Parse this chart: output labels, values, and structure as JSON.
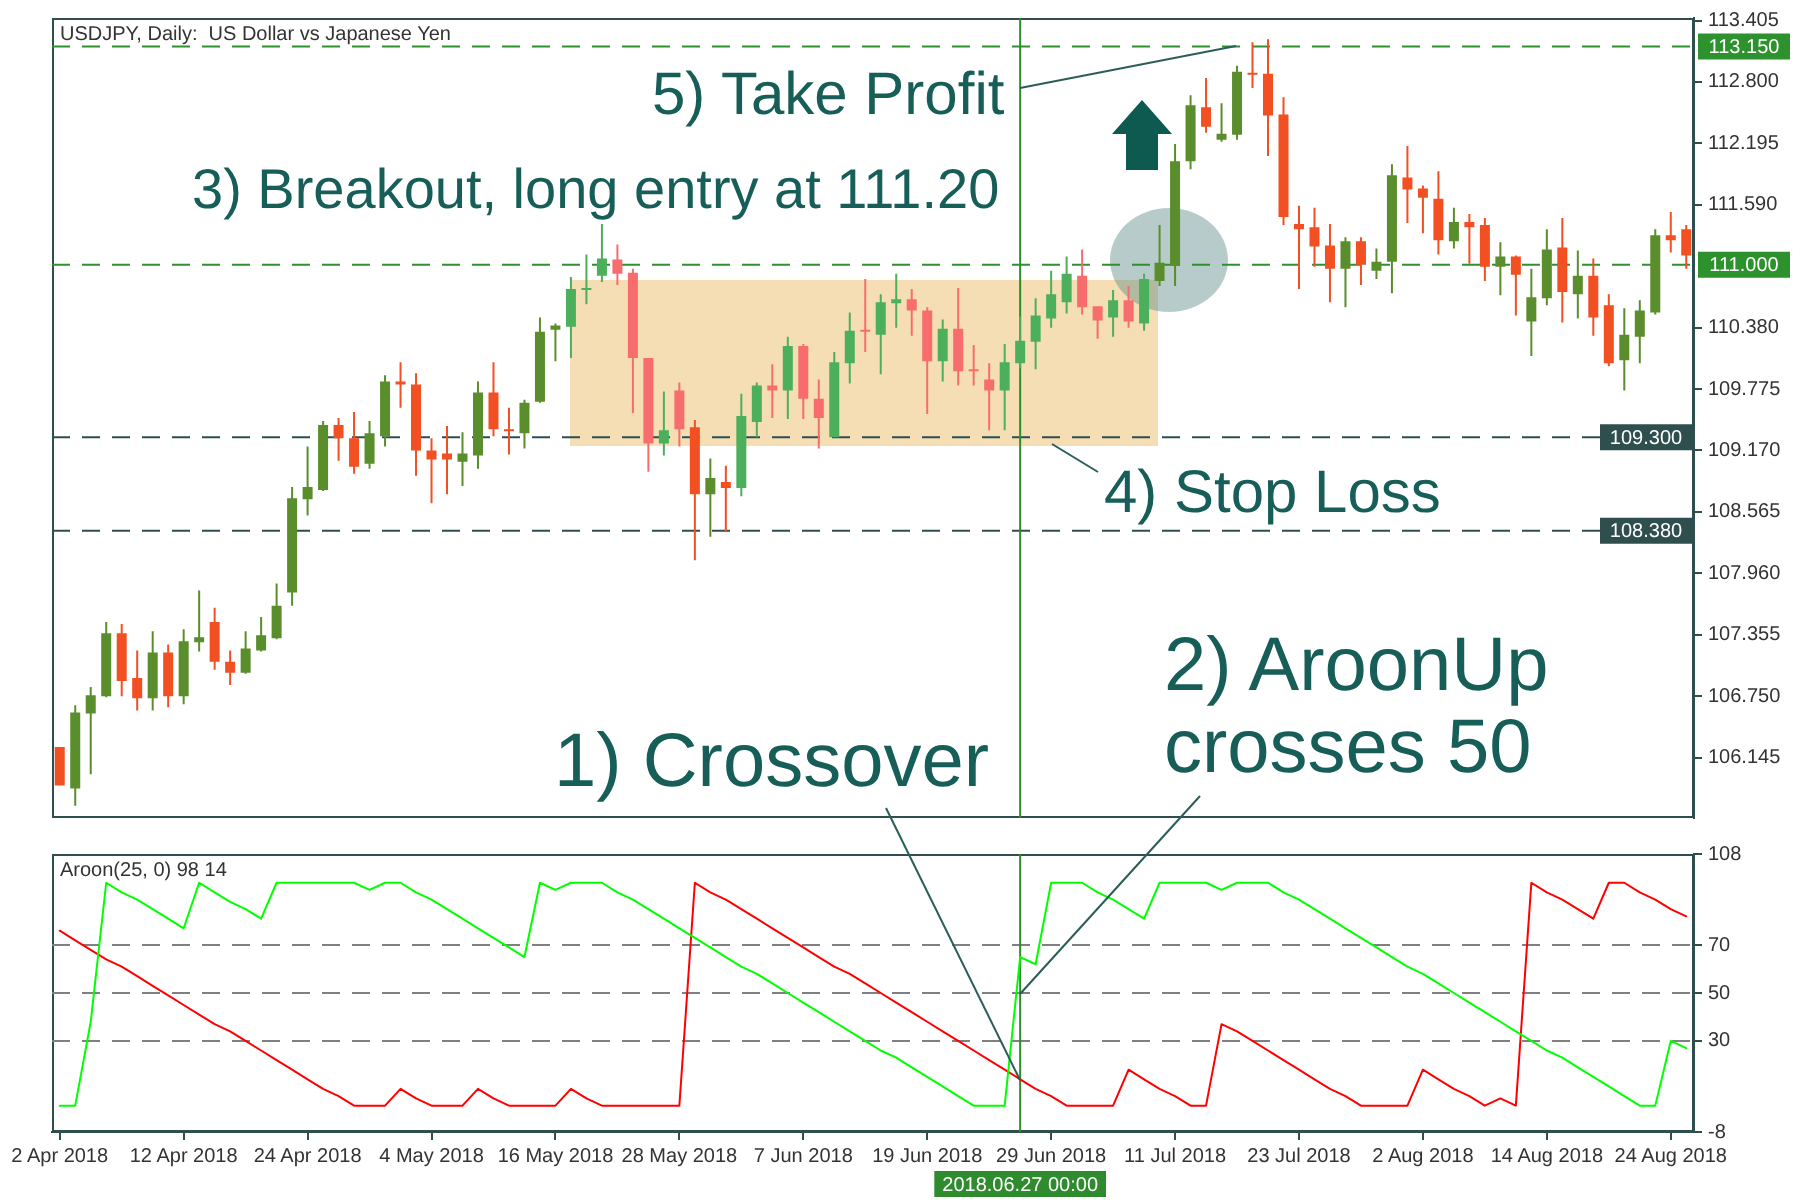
{
  "chart_data": [
    {
      "type": "candlestick",
      "title": "USDJPY, Daily:  US Dollar vs Japanese Yen",
      "tick_labels": "y",
      "annotations": [
        "3) Breakout, long entry at 111.20",
        "4) Stop Loss",
        {
          "text": "5) Take Profit",
          "y": 113.15
        }
      ],
      "categories": [
        "2 Apr 2018",
        null,
        null,
        null,
        null,
        null,
        null,
        null,
        "12 Apr 2018",
        null,
        null,
        null,
        null,
        null,
        null,
        null,
        "24 Apr 2018",
        null,
        null,
        null,
        null,
        null,
        null,
        null,
        "4 May 2018",
        null,
        null,
        null,
        null,
        null,
        null,
        null,
        "16 May 2018",
        null,
        null,
        null,
        null,
        null,
        null,
        null,
        "28 May 2018",
        null,
        null,
        null,
        null,
        null,
        null,
        null,
        "7 Jun 2018",
        null,
        null,
        null,
        null,
        null,
        null,
        null,
        "19 Jun 2018",
        null,
        null,
        null,
        null,
        null,
        "2018.06.27 00:00",
        null,
        "29 Jun 2018",
        null,
        null,
        null,
        null,
        null,
        null,
        null,
        "11 Jul 2018",
        null,
        null,
        null,
        null,
        null,
        null,
        null,
        "23 Jul 2018",
        null,
        null,
        null,
        null,
        null,
        null,
        null,
        "2 Aug 2018",
        null,
        null,
        null,
        null,
        null,
        null,
        null,
        "14 Aug 2018",
        null,
        null,
        null,
        null,
        null,
        null,
        null,
        "24 Aug 2018",
        null
      ],
      "ohlc": [
        [
          106.25,
          106.25,
          105.87,
          105.87
        ],
        [
          105.84,
          106.66,
          105.67,
          106.59
        ],
        [
          106.58,
          106.84,
          105.98,
          106.76
        ],
        [
          106.75,
          107.48,
          106.74,
          107.37
        ],
        [
          107.37,
          107.46,
          106.75,
          106.9
        ],
        [
          106.93,
          107.2,
          106.61,
          106.73
        ],
        [
          106.73,
          107.39,
          106.61,
          107.18
        ],
        [
          107.18,
          107.26,
          106.64,
          106.75
        ],
        [
          106.75,
          107.41,
          106.67,
          107.29
        ],
        [
          107.28,
          107.79,
          107.19,
          107.33
        ],
        [
          107.48,
          107.62,
          107.01,
          107.09
        ],
        [
          107.09,
          107.2,
          106.86,
          106.98
        ],
        [
          106.98,
          107.39,
          106.97,
          107.22
        ],
        [
          107.2,
          107.53,
          107.19,
          107.35
        ],
        [
          107.32,
          107.86,
          107.31,
          107.64
        ],
        [
          107.77,
          108.81,
          107.64,
          108.7
        ],
        [
          108.69,
          109.21,
          108.53,
          108.81
        ],
        [
          108.78,
          109.46,
          108.77,
          109.42
        ],
        [
          109.42,
          109.49,
          109.07,
          109.29
        ],
        [
          109.29,
          109.55,
          108.94,
          109.01
        ],
        [
          109.04,
          109.46,
          108.99,
          109.34
        ],
        [
          109.31,
          109.91,
          109.21,
          109.85
        ],
        [
          109.85,
          110.04,
          109.59,
          109.82
        ],
        [
          109.82,
          109.93,
          108.92,
          109.17
        ],
        [
          109.17,
          109.29,
          108.65,
          109.08
        ],
        [
          109.14,
          109.41,
          108.74,
          109.08
        ],
        [
          109.06,
          109.35,
          108.82,
          109.14
        ],
        [
          109.12,
          109.85,
          108.99,
          109.74
        ],
        [
          109.74,
          110.04,
          109.31,
          109.38
        ],
        [
          109.38,
          109.59,
          109.13,
          109.36
        ],
        [
          109.34,
          109.67,
          109.19,
          109.64
        ],
        [
          109.65,
          110.48,
          109.64,
          110.34
        ],
        [
          110.36,
          110.42,
          110.05,
          110.4
        ],
        [
          110.39,
          110.88,
          110.08,
          110.76
        ],
        [
          110.75,
          111.1,
          110.61,
          110.77
        ],
        [
          110.89,
          111.4,
          110.83,
          111.06
        ],
        [
          111.05,
          111.2,
          110.8,
          110.91
        ],
        [
          110.92,
          110.96,
          109.54,
          110.08
        ],
        [
          110.08,
          110.08,
          108.96,
          109.24
        ],
        [
          109.24,
          109.75,
          109.12,
          109.37
        ],
        [
          109.76,
          109.84,
          109.21,
          109.38
        ],
        [
          109.4,
          109.47,
          108.09,
          108.74
        ],
        [
          108.74,
          109.09,
          108.32,
          108.9
        ],
        [
          108.86,
          109.02,
          108.37,
          108.8
        ],
        [
          108.8,
          109.73,
          108.72,
          109.51
        ],
        [
          109.45,
          109.84,
          109.3,
          109.81
        ],
        [
          109.81,
          110.02,
          109.49,
          109.76
        ],
        [
          109.76,
          110.29,
          109.48,
          110.2
        ],
        [
          110.2,
          110.22,
          109.48,
          109.68
        ],
        [
          109.68,
          109.87,
          109.19,
          109.49
        ],
        [
          109.3,
          110.14,
          109.3,
          110.04
        ],
        [
          110.03,
          110.53,
          109.83,
          110.35
        ],
        [
          110.36,
          110.86,
          110.14,
          110.34
        ],
        [
          110.31,
          110.71,
          109.92,
          110.63
        ],
        [
          110.62,
          110.91,
          110.38,
          110.66
        ],
        [
          110.66,
          110.76,
          110.3,
          110.55
        ],
        [
          110.55,
          110.58,
          109.53,
          110.05
        ],
        [
          110.05,
          110.46,
          109.85,
          110.37
        ],
        [
          110.37,
          110.77,
          109.81,
          109.95
        ],
        [
          109.97,
          110.21,
          109.81,
          109.96
        ],
        [
          109.87,
          110.03,
          109.37,
          109.76
        ],
        [
          109.76,
          110.22,
          109.37,
          110.04
        ],
        [
          110.03,
          110.49,
          109.98,
          110.25
        ],
        [
          110.24,
          110.67,
          109.97,
          110.5
        ],
        [
          110.47,
          110.94,
          110.38,
          110.71
        ],
        [
          110.63,
          111.08,
          110.52,
          110.91
        ],
        [
          110.89,
          111.15,
          110.51,
          110.58
        ],
        [
          110.59,
          110.59,
          110.27,
          110.45
        ],
        [
          110.48,
          110.75,
          110.29,
          110.65
        ],
        [
          110.65,
          110.79,
          110.38,
          110.44
        ],
        [
          110.42,
          110.91,
          110.35,
          110.86
        ],
        [
          110.84,
          111.39,
          110.79,
          111.02
        ],
        [
          110.99,
          112.19,
          110.79,
          112.02
        ],
        [
          112.02,
          112.67,
          111.94,
          112.57
        ],
        [
          112.55,
          112.84,
          112.3,
          112.36
        ],
        [
          112.23,
          112.59,
          112.21,
          112.29
        ],
        [
          112.28,
          112.96,
          112.23,
          112.9
        ],
        [
          112.89,
          113.19,
          112.74,
          112.88
        ],
        [
          112.88,
          113.22,
          112.07,
          112.47
        ],
        [
          112.48,
          112.65,
          111.39,
          111.47
        ],
        [
          111.4,
          111.58,
          110.76,
          111.35
        ],
        [
          111.37,
          111.56,
          110.98,
          111.18
        ],
        [
          111.19,
          111.4,
          110.63,
          110.96
        ],
        [
          110.96,
          111.27,
          110.58,
          111.23
        ],
        [
          111.23,
          111.27,
          110.8,
          111
        ],
        [
          110.94,
          111.16,
          110.86,
          111.03
        ],
        [
          111.03,
          111.99,
          110.72,
          111.88
        ],
        [
          111.86,
          112.17,
          111.41,
          111.74
        ],
        [
          111.75,
          111.78,
          111.31,
          111.66
        ],
        [
          111.65,
          111.92,
          111.1,
          111.24
        ],
        [
          111.23,
          111.56,
          111.16,
          111.42
        ],
        [
          111.42,
          111.5,
          111.01,
          111.37
        ],
        [
          111.39,
          111.46,
          110.84,
          110.98
        ],
        [
          110.98,
          111.22,
          110.7,
          111.08
        ],
        [
          111.08,
          111.09,
          110.5,
          110.9
        ],
        [
          110.44,
          110.96,
          110.1,
          110.68
        ],
        [
          110.67,
          111.35,
          110.6,
          111.15
        ],
        [
          111.17,
          111.46,
          110.43,
          110.73
        ],
        [
          110.71,
          111.14,
          110.47,
          110.89
        ],
        [
          110.89,
          111.06,
          110.3,
          110.48
        ],
        [
          110.6,
          110.71,
          110,
          110.03
        ],
        [
          110.06,
          110.57,
          109.76,
          110.31
        ],
        [
          110.29,
          110.65,
          110.03,
          110.55
        ],
        [
          110.53,
          111.35,
          110.51,
          111.29
        ],
        [
          111.29,
          111.52,
          111.12,
          111.24
        ],
        [
          111.35,
          111.39,
          110.96,
          111.09
        ]
      ],
      "colors": [
        "#f24f22",
        "#5a8e2c",
        "#5a8e2c",
        "#5a8e2c",
        "#f24f22",
        "#f24f22",
        "#5a8e2c",
        "#f24f22",
        "#5a8e2c",
        "#5a8e2c",
        "#f24f22",
        "#f24f22",
        "#5a8e2c",
        "#5a8e2c",
        "#5a8e2c",
        "#5a8e2c",
        "#5a8e2c",
        "#5a8e2c",
        "#f24f22",
        "#f24f22",
        "#5a8e2c",
        "#5a8e2c",
        "#f24f22",
        "#f24f22",
        "#f24f22",
        "#f24f22",
        "#5a8e2c",
        "#5a8e2c",
        "#f24f22",
        "#f24f22",
        "#5a8e2c",
        "#5a8e2c",
        "#5a8e2c",
        "#4caf5c",
        "#4caf5c",
        "#4caf5c",
        "#f76d6d",
        "#f76d6d",
        "#f76d6d",
        "#4caf5c",
        "#f76d6d",
        "#f24f22",
        "#5a8e2c",
        "#f24f22",
        "#4caf5c",
        "#4caf5c",
        "#f76d6d",
        "#4caf5c",
        "#f76d6d",
        "#f76d6d",
        "#4caf5c",
        "#4caf5c",
        "#f76d6d",
        "#4caf5c",
        "#4caf5c",
        "#f76d6d",
        "#f76d6d",
        "#4caf5c",
        "#f76d6d",
        "#f76d6d",
        "#f76d6d",
        "#4caf5c",
        "#4caf5c",
        "#4caf5c",
        "#4caf5c",
        "#4caf5c",
        "#f76d6d",
        "#f76d6d",
        "#4caf5c",
        "#f76d6d",
        "#4caf5c",
        "#5a8e2c",
        "#5a8e2c",
        "#5a8e2c",
        "#f24f22",
        "#5a8e2c",
        "#5a8e2c",
        "#f24f22",
        "#f24f22",
        "#f24f22",
        "#f24f22",
        "#f24f22",
        "#f24f22",
        "#5a8e2c",
        "#f24f22",
        "#5a8e2c",
        "#5a8e2c",
        "#f24f22",
        "#f24f22",
        "#f24f22",
        "#5a8e2c",
        "#f24f22",
        "#f24f22",
        "#5a8e2c",
        "#f24f22",
        "#5a8e2c",
        "#5a8e2c",
        "#f24f22",
        "#5a8e2c",
        "#f24f22",
        "#f24f22",
        "#5a8e2c",
        "#5a8e2c",
        "#5a8e2c",
        "#f24f22",
        "#f24f22"
      ],
      "ylim": [
        105.55,
        113.43
      ],
      "yticks": [
        113.405,
        {
          "value": 112.8,
          "label": "112.800"
        },
        112.195,
        {
          "value": 111.59,
          "label": "111.590"
        },
        {
          "value": 110.38,
          "label": "110.380"
        },
        109.775,
        {
          "value": 109.17,
          "label": "109.170"
        },
        108.565,
        {
          "value": 107.96,
          "label": "107.960"
        },
        107.355,
        {
          "value": 106.75,
          "label": "106.750"
        },
        106.145
      ],
      "ref_lines": [
        {
          "axis": "y",
          "value": 113.15,
          "label": "113.150",
          "color": "#2d912d",
          "line_style": "dashed"
        },
        {
          "axis": "y",
          "value": 111,
          "label": "111.000",
          "color": "#2d912d",
          "line_style": "dashed"
        },
        {
          "axis": "y",
          "value": 109.3,
          "label": "109.300",
          "color": "#2f4f4f",
          "line_style": "dashed"
        },
        {
          "axis": "y",
          "value": 108.38,
          "label": "108.380",
          "color": "#2f4f4f",
          "line_style": "dashed"
        },
        {
          "axis": "x",
          "value": "2018.06.27 00:00",
          "color": "#2e8b2e",
          "line_style": "solid"
        }
      ]
    },
    {
      "type": "line",
      "title": "Aroon(25, 0) 98 14",
      "annotations": [
        {
          "text": "1) Crossover",
          "x": "2018.06.27 00:00",
          "y": 14
        },
        {
          "text": "2) AroonUp crosses 50",
          "x": "2018.06.27 00:00",
          "y": 50
        }
      ],
      "categories": [
        "2 Apr 2018",
        null,
        null,
        null,
        null,
        null,
        null,
        null,
        "12 Apr 2018",
        null,
        null,
        null,
        null,
        null,
        null,
        null,
        "24 Apr 2018",
        null,
        null,
        null,
        null,
        null,
        null,
        null,
        "4 May 2018",
        null,
        null,
        null,
        null,
        null,
        null,
        null,
        "16 May 2018",
        null,
        null,
        null,
        null,
        null,
        null,
        null,
        "28 May 2018",
        null,
        null,
        null,
        null,
        null,
        null,
        null,
        "7 Jun 2018",
        null,
        null,
        null,
        null,
        null,
        null,
        null,
        "19 Jun 2018",
        null,
        null,
        null,
        null,
        null,
        "2018.06.27 00:00",
        null,
        "29 Jun 2018",
        null,
        null,
        null,
        null,
        null,
        null,
        null,
        "11 Jul 2018",
        null,
        null,
        null,
        null,
        null,
        null,
        null,
        "23 Jul 2018",
        null,
        null,
        null,
        null,
        null,
        null,
        null,
        "2 Aug 2018",
        null,
        null,
        null,
        null,
        null,
        null,
        null,
        "14 Aug 2018",
        null,
        null,
        null,
        null,
        null,
        null,
        null,
        "24 Aug 2018",
        null
      ],
      "series": [
        {
          "color": "#00ff00",
          "values": [
            3,
            3,
            38,
            96,
            92,
            89,
            85,
            81,
            77,
            96,
            92,
            88,
            85,
            81,
            96,
            96,
            96,
            96,
            96,
            96,
            93,
            96,
            96,
            92,
            89,
            85,
            81,
            77,
            73,
            69,
            65,
            96,
            93,
            96,
            96,
            96,
            92,
            89,
            85,
            81,
            77,
            73,
            69,
            65,
            61,
            58,
            54,
            50,
            46,
            42,
            38,
            34,
            30,
            26,
            23,
            19,
            15,
            11,
            7,
            3,
            3,
            3,
            65,
            62,
            96,
            96,
            96,
            92,
            89,
            85,
            81,
            96,
            96,
            96,
            96,
            93,
            96,
            96,
            96,
            92,
            89,
            85,
            81,
            77,
            73,
            69,
            65,
            61,
            58,
            54,
            50,
            46,
            42,
            38,
            34,
            30,
            26,
            23,
            19,
            15,
            11,
            7,
            3,
            3,
            30,
            27
          ]
        },
        {
          "color": "#ff0000",
          "values": [
            76,
            72,
            68,
            64,
            61,
            57,
            53,
            49,
            45,
            41,
            37,
            34,
            30,
            26,
            22,
            18,
            14,
            10,
            7,
            3,
            3,
            3,
            10,
            6,
            3,
            3,
            3,
            10,
            6,
            3,
            3,
            3,
            3,
            10,
            6,
            3,
            3,
            3,
            3,
            3,
            3,
            96,
            92,
            89,
            85,
            81,
            77,
            73,
            69,
            65,
            61,
            58,
            54,
            50,
            46,
            42,
            38,
            34,
            30,
            26,
            22,
            18,
            14,
            10,
            7,
            3,
            3,
            3,
            3,
            18,
            14,
            10,
            7,
            3,
            3,
            37,
            34,
            30,
            26,
            22,
            18,
            14,
            10,
            7,
            3,
            3,
            3,
            3,
            18,
            14,
            10,
            7,
            3,
            6,
            3,
            96,
            92,
            89,
            85,
            81,
            96,
            96,
            92,
            89,
            85,
            82
          ]
        }
      ],
      "ylim": [
        -8,
        108
      ],
      "yticks": [
        -8,
        30,
        50,
        70,
        108
      ],
      "ref_lines": [
        {
          "axis": "y",
          "value": 70,
          "color": "#808080",
          "line_style": "dashed"
        },
        {
          "axis": "y",
          "value": 50,
          "color": "#808080",
          "line_style": "dashed"
        },
        {
          "axis": "y",
          "value": 30,
          "color": "#808080",
          "line_style": "dashed"
        },
        {
          "axis": "x",
          "value": "2018.06.27 00:00",
          "color": "#2e8b2e",
          "line_style": "solid"
        }
      ]
    }
  ]
}
